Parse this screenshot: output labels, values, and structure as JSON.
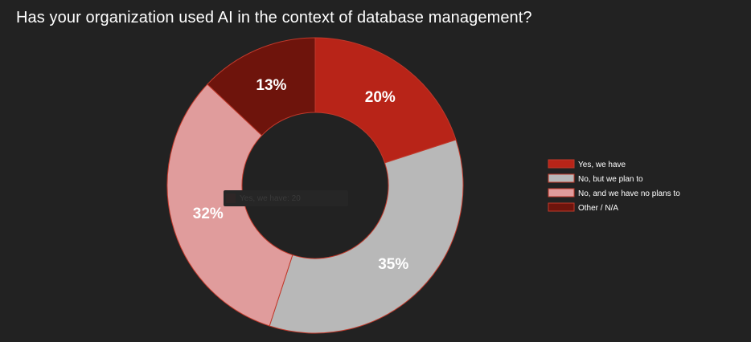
{
  "title": "Has your organization used AI in the context of database management?",
  "chart_data": {
    "type": "pie",
    "style": "donut",
    "categories": [
      "Yes, we have",
      "No, but we plan to",
      "No, and we have no plans to",
      "Other / N/A"
    ],
    "values": [
      20,
      35,
      32,
      13
    ],
    "unit": "%",
    "colors": [
      "#b82418",
      "#b8b8b8",
      "#e09c9c",
      "#6e140c"
    ],
    "legend_position": "right",
    "tooltip": {
      "category": "Yes, we have",
      "value": "20"
    }
  }
}
